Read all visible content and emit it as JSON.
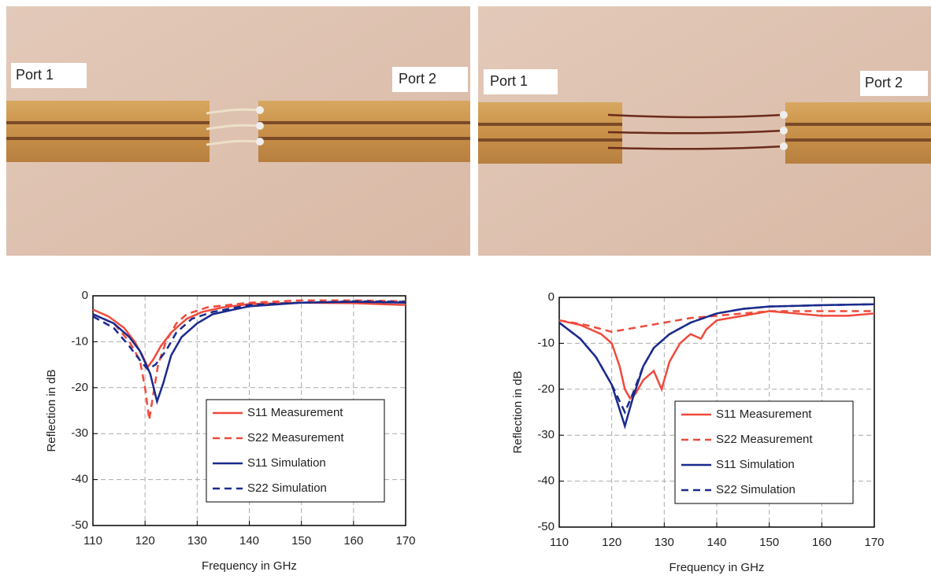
{
  "photos": [
    {
      "labels": [
        "Port 1",
        "Port 2"
      ]
    },
    {
      "labels": [
        "Port 1",
        "Port 2"
      ]
    }
  ],
  "chart_data": [
    {
      "type": "line",
      "xlabel": "Frequency in GHz",
      "ylabel": "Reflection in dB",
      "xlim": [
        110,
        170
      ],
      "xticks": [
        110,
        120,
        130,
        140,
        150,
        160,
        170
      ],
      "ylim": [
        -50,
        0
      ],
      "yticks": [
        0,
        -10,
        -20,
        -30,
        -40,
        -50
      ],
      "grid": true,
      "legend": "lower right",
      "series": [
        {
          "name": "S11 Measurement",
          "color": "#f04a3c",
          "line_style": "solid",
          "x": [
            110,
            113,
            116,
            118,
            119.5,
            120.5,
            121.5,
            123,
            125,
            128,
            131,
            135,
            140,
            150,
            160,
            170
          ],
          "values": [
            -3,
            -4.5,
            -7,
            -10,
            -13,
            -15.5,
            -14,
            -11,
            -8,
            -5,
            -3.5,
            -2.5,
            -1.8,
            -1.5,
            -1.6,
            -2
          ]
        },
        {
          "name": "S22 Measurement",
          "color": "#f04a3c",
          "line_style": "dashed",
          "x": [
            110,
            114,
            117,
            119,
            120,
            120.8,
            121.5,
            122.5,
            124,
            126,
            128,
            132,
            140,
            150,
            160,
            170
          ],
          "values": [
            -4,
            -6,
            -10,
            -14,
            -20,
            -27,
            -22,
            -15,
            -10,
            -6,
            -4,
            -2.5,
            -1.5,
            -1,
            -1,
            -1.2
          ]
        },
        {
          "name": "S11 Simulation",
          "color": "#1a2a8c",
          "line_style": "solid",
          "x": [
            110,
            114,
            117,
            119,
            121,
            122.3,
            123.5,
            125,
            127,
            130,
            133,
            137,
            140,
            150,
            160,
            170
          ],
          "values": [
            -4,
            -6,
            -9,
            -12,
            -17,
            -23,
            -19,
            -13,
            -9,
            -6,
            -4,
            -3,
            -2.3,
            -1.5,
            -1.3,
            -1.5
          ]
        },
        {
          "name": "S22 Simulation",
          "color": "#1a2a8c",
          "line_style": "dashed",
          "x": [
            110,
            114,
            117,
            119,
            120.5,
            122,
            124,
            126,
            129,
            133,
            140,
            150,
            160,
            170
          ],
          "values": [
            -4.5,
            -7,
            -11,
            -14,
            -16,
            -15,
            -12,
            -8,
            -5,
            -3.5,
            -2,
            -1.5,
            -1.2,
            -1.3
          ]
        }
      ]
    },
    {
      "type": "line",
      "xlabel": "Frequency in GHz",
      "ylabel": "Reflection in dB",
      "xlim": [
        110,
        170
      ],
      "xticks": [
        110,
        120,
        130,
        140,
        150,
        160,
        170
      ],
      "ylim": [
        -50,
        0
      ],
      "yticks": [
        0,
        -10,
        -20,
        -30,
        -40,
        -50
      ],
      "grid": true,
      "legend": "lower right",
      "series": [
        {
          "name": "S11 Measurement",
          "color": "#f04a3c",
          "line_style": "solid",
          "x": [
            110,
            114,
            118,
            120,
            121.5,
            122.5,
            123.5,
            124.5,
            126,
            128,
            129.5,
            131,
            133,
            135,
            137,
            138,
            140,
            145,
            150,
            155,
            160,
            165,
            170
          ],
          "values": [
            -5,
            -6,
            -8,
            -10,
            -15,
            -20,
            -22,
            -21,
            -18,
            -16,
            -20,
            -14,
            -10,
            -8,
            -9,
            -7,
            -5,
            -4,
            -3,
            -3.5,
            -4,
            -4,
            -3.5
          ]
        },
        {
          "name": "S22 Measurement",
          "color": "#f04a3c",
          "line_style": "dashed",
          "x": [
            110,
            115,
            120,
            125,
            130,
            135,
            140,
            145,
            150,
            155,
            160,
            165,
            170
          ],
          "values": [
            -5,
            -6,
            -7.5,
            -6.5,
            -5.5,
            -4.5,
            -4,
            -3.5,
            -3,
            -3,
            -3,
            -3,
            -3
          ]
        },
        {
          "name": "S11 Simulation",
          "color": "#1a2a8c",
          "line_style": "solid",
          "x": [
            110,
            114,
            117,
            120,
            122.5,
            124,
            126,
            128,
            131,
            135,
            140,
            145,
            150,
            160,
            170
          ],
          "values": [
            -5.5,
            -9,
            -13,
            -19,
            -28,
            -22,
            -15,
            -11,
            -8,
            -5.5,
            -3.5,
            -2.5,
            -2,
            -1.7,
            -1.5
          ]
        },
        {
          "name": "S22 Simulation",
          "color": "#1a2a8c",
          "line_style": "dashed",
          "x": [
            110,
            114,
            117,
            120,
            122.5,
            124,
            126,
            128,
            131,
            135,
            140,
            145,
            150,
            160,
            170
          ],
          "values": [
            -5.5,
            -9,
            -13,
            -19,
            -25,
            -21,
            -15,
            -11,
            -8,
            -5.5,
            -3.5,
            -2.5,
            -2,
            -1.7,
            -1.5
          ]
        }
      ]
    }
  ]
}
